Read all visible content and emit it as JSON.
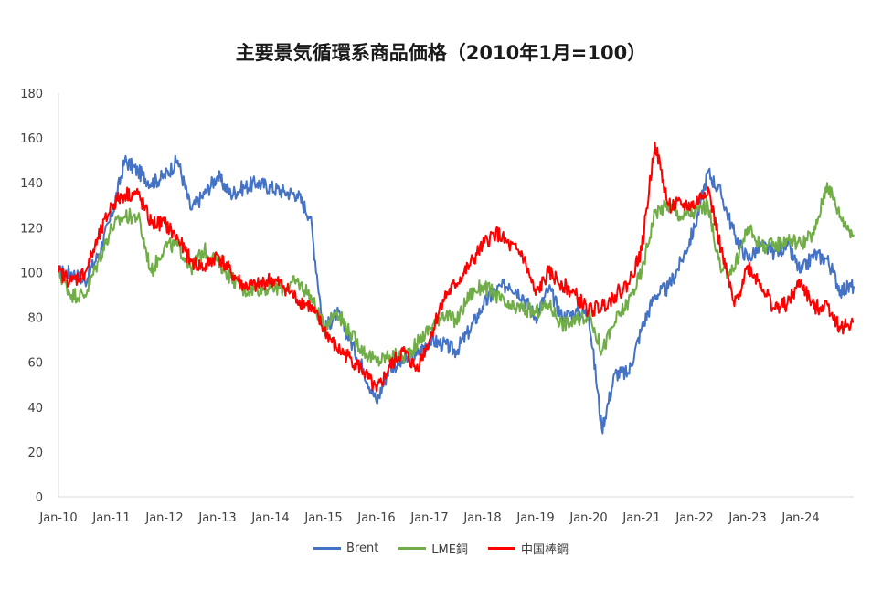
{
  "chart_data": {
    "type": "line",
    "title": "主要景気循環系商品価格（2010年1月=100）",
    "xlabel": "",
    "ylabel": "",
    "ylim": [
      0,
      180
    ],
    "yticks": [
      "0",
      "20",
      "40",
      "60",
      "80",
      "100",
      "120",
      "140",
      "160",
      "180"
    ],
    "xticks": [
      "Jan-10",
      "Jan-11",
      "Jan-12",
      "Jan-13",
      "Jan-14",
      "Jan-15",
      "Jan-16",
      "Jan-17",
      "Jan-18",
      "Jan-19",
      "Jan-20",
      "Jan-21",
      "Jan-22",
      "Jan-23",
      "Jan-24"
    ],
    "grid": false,
    "legend_position": "bottom",
    "x": [
      2010.0,
      2010.25,
      2010.5,
      2010.75,
      2011.0,
      2011.25,
      2011.5,
      2011.75,
      2012.0,
      2012.25,
      2012.5,
      2012.75,
      2013.0,
      2013.25,
      2013.5,
      2013.75,
      2014.0,
      2014.25,
      2014.5,
      2014.75,
      2015.0,
      2015.25,
      2015.5,
      2015.75,
      2016.0,
      2016.25,
      2016.5,
      2016.75,
      2017.0,
      2017.25,
      2017.5,
      2017.75,
      2018.0,
      2018.25,
      2018.5,
      2018.75,
      2019.0,
      2019.25,
      2019.5,
      2019.75,
      2020.0,
      2020.25,
      2020.5,
      2020.75,
      2021.0,
      2021.25,
      2021.5,
      2021.75,
      2022.0,
      2022.25,
      2022.5,
      2022.75,
      2023.0,
      2023.25,
      2023.5,
      2023.75,
      2024.0,
      2024.25,
      2024.5,
      2024.75,
      2025.0
    ],
    "series": [
      {
        "name": "Brent",
        "color": "#4472C4",
        "values": [
          100,
          100,
          96,
          108,
          125,
          150,
          145,
          140,
          143,
          150,
          128,
          135,
          143,
          135,
          138,
          140,
          138,
          136,
          135,
          125,
          74,
          82,
          70,
          57,
          42,
          58,
          60,
          63,
          70,
          68,
          65,
          74,
          85,
          92,
          95,
          90,
          80,
          93,
          80,
          82,
          82,
          30,
          55,
          55,
          75,
          90,
          93,
          105,
          120,
          145,
          135,
          117,
          106,
          112,
          109,
          112,
          100,
          108,
          106,
          92,
          94
        ]
      },
      {
        "name": "LME銅",
        "color": "#70AD47",
        "values": [
          100,
          90,
          90,
          105,
          120,
          125,
          125,
          100,
          112,
          112,
          102,
          110,
          105,
          98,
          92,
          93,
          93,
          93,
          96,
          90,
          76,
          83,
          73,
          65,
          60,
          63,
          62,
          68,
          75,
          82,
          78,
          90,
          94,
          90,
          84,
          84,
          82,
          86,
          77,
          78,
          82,
          65,
          78,
          87,
          100,
          127,
          130,
          125,
          127,
          130,
          100,
          102,
          120,
          112,
          112,
          115,
          113,
          117,
          140,
          125,
          117
        ]
      },
      {
        "name": "中国棒鋼",
        "color": "#FF0000",
        "values": [
          100,
          96,
          100,
          115,
          130,
          135,
          135,
          122,
          122,
          115,
          105,
          102,
          108,
          100,
          94,
          94,
          97,
          94,
          88,
          85,
          75,
          66,
          62,
          56,
          47,
          58,
          65,
          57,
          70,
          88,
          95,
          103,
          112,
          118,
          112,
          108,
          90,
          100,
          95,
          90,
          83,
          85,
          90,
          95,
          110,
          158,
          130,
          130,
          130,
          138,
          110,
          85,
          103,
          95,
          84,
          86,
          96,
          84,
          86,
          75,
          78
        ]
      }
    ]
  }
}
